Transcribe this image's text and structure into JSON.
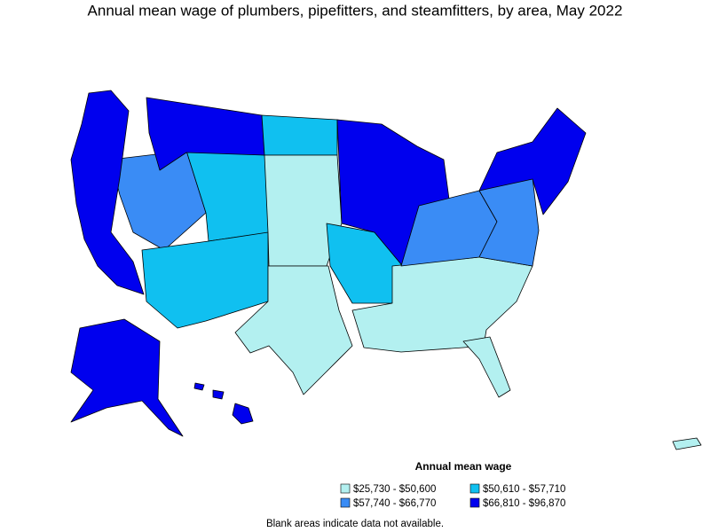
{
  "title": "Annual mean wage of plumbers, pipefitters, and steamfitters, by area, May 2022",
  "legend": {
    "title": "Annual mean wage",
    "items": [
      {
        "label": "$25,730 - $50,600",
        "color": "#b3f0f0"
      },
      {
        "label": "$50,610 - $57,710",
        "color": "#10c0f0"
      },
      {
        "label": "$57,740 - $66,770",
        "color": "#3a8cf5"
      },
      {
        "label": "$66,810 - $96,870",
        "color": "#0000ee"
      }
    ]
  },
  "note": "Blank areas indicate data not available."
}
